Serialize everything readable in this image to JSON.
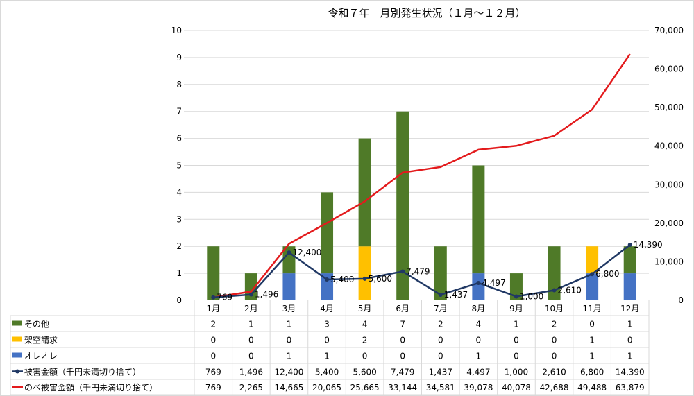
{
  "chart_data": {
    "type": "bar",
    "title": "令和７年　月別発生状況（１月～１２月）",
    "categories": [
      "1月",
      "2月",
      "3月",
      "4月",
      "5月",
      "6月",
      "7月",
      "8月",
      "9月",
      "10月",
      "11月",
      "12月"
    ],
    "stacked": true,
    "left_axis": {
      "ylim": [
        0,
        10
      ],
      "ticks": [
        "0",
        "1",
        "2",
        "3",
        "4",
        "5",
        "6",
        "7",
        "8",
        "9",
        "10"
      ]
    },
    "right_axis": {
      "ylim": [
        0,
        70000
      ],
      "ticks": [
        "0",
        "10,000",
        "20,000",
        "30,000",
        "40,000",
        "50,000",
        "60,000",
        "70,000"
      ]
    },
    "grid": true,
    "series": [
      {
        "name": "その他",
        "kind": "bar",
        "axis": "left",
        "color": "#4f7a28",
        "values": [
          2,
          1,
          1,
          3,
          4,
          7,
          2,
          4,
          1,
          2,
          0,
          1
        ],
        "labels": [
          "2",
          "1",
          "1",
          "3",
          "4",
          "7",
          "2",
          "4",
          "1",
          "2",
          "0",
          "1"
        ]
      },
      {
        "name": "架空請求",
        "kind": "bar",
        "axis": "left",
        "color": "#ffc000",
        "values": [
          0,
          0,
          0,
          0,
          2,
          0,
          0,
          0,
          0,
          0,
          1,
          0
        ],
        "labels": [
          "0",
          "0",
          "0",
          "0",
          "2",
          "0",
          "0",
          "0",
          "0",
          "0",
          "1",
          "0"
        ]
      },
      {
        "name": "オレオレ",
        "kind": "bar",
        "axis": "left",
        "color": "#4472c4",
        "values": [
          0,
          0,
          1,
          1,
          0,
          0,
          0,
          1,
          0,
          0,
          1,
          1
        ],
        "labels": [
          "0",
          "0",
          "1",
          "1",
          "0",
          "0",
          "0",
          "1",
          "0",
          "0",
          "1",
          "1"
        ]
      },
      {
        "name": "被害金額（千円未満切り捨て）",
        "kind": "line-marker",
        "axis": "right",
        "color": "#203864",
        "values": [
          769,
          1496,
          12400,
          5400,
          5600,
          7479,
          1437,
          4497,
          1000,
          2610,
          6800,
          14390
        ],
        "labels": [
          "769",
          "1,496",
          "12,400",
          "5,400",
          "5,600",
          "7,479",
          "1,437",
          "4,497",
          "1,000",
          "2,610",
          "6,800",
          "14,390"
        ]
      },
      {
        "name": "のべ被害金額（千円未満切り捨て）",
        "kind": "line",
        "axis": "right",
        "color": "#e31a1c",
        "values": [
          769,
          2265,
          14665,
          20065,
          25665,
          33144,
          34581,
          39078,
          40078,
          42688,
          49488,
          63879
        ],
        "labels": [
          "769",
          "2,265",
          "14,665",
          "20,065",
          "25,665",
          "33,144",
          "34,581",
          "39,078",
          "40,078",
          "42,688",
          "49,488",
          "63,879"
        ]
      }
    ],
    "legend": "bottom-data-table"
  }
}
